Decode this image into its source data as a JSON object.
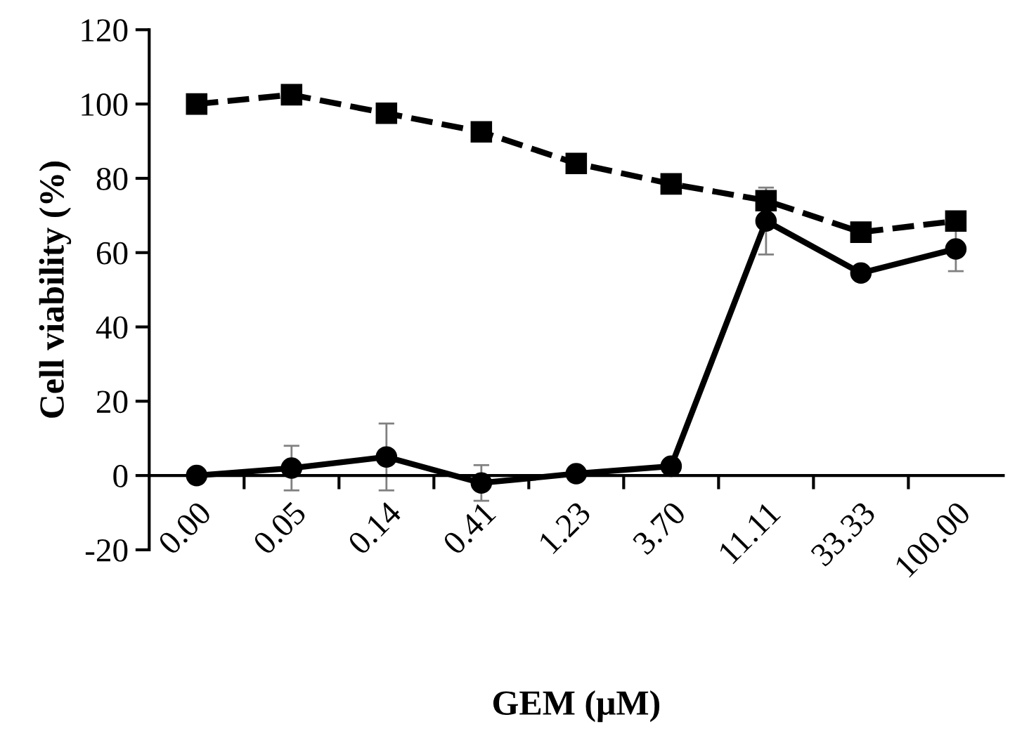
{
  "chart_data": {
    "type": "line",
    "xlabel": "GEM (μM)",
    "ylabel": "Cell viability (%)",
    "categories": [
      "0.00",
      "0.05",
      "0.14",
      "0.41",
      "1.23",
      "3.70",
      "11.11",
      "33.33",
      "100.00"
    ],
    "ylim": [
      -20,
      120
    ],
    "yticks": [
      -20,
      0,
      20,
      40,
      60,
      80,
      100,
      120
    ],
    "grid": false,
    "legend": false,
    "series": [
      {
        "color": "#000000",
        "marker": "square",
        "line_style": "dashed",
        "values": [
          100,
          102.5,
          97.5,
          92.5,
          84,
          78.5,
          74,
          65.5,
          68.5
        ]
      },
      {
        "color": "#000000",
        "marker": "circle",
        "line_style": "solid",
        "values": [
          0,
          2,
          5,
          -2,
          0.5,
          2.5,
          68.5,
          54.5,
          61
        ],
        "errors": [
          null,
          6,
          9,
          4.8,
          null,
          null,
          9,
          1,
          6
        ]
      }
    ]
  }
}
